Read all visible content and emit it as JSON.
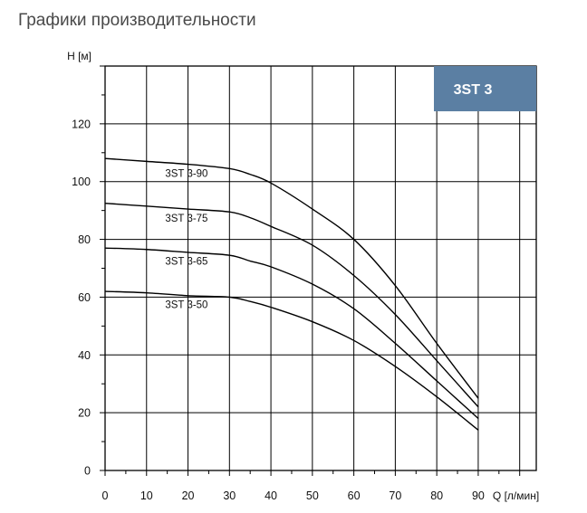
{
  "page_title": "Графики производительности",
  "badge": {
    "text": "3ST 3",
    "color": "#5b7fa3"
  },
  "chart_data": {
    "type": "line",
    "ylabel": "H [м]",
    "xlabel": "Q [л/мин]",
    "xlim": [
      0,
      104
    ],
    "ylim": [
      0,
      140
    ],
    "x_ticks": [
      0,
      10,
      20,
      30,
      40,
      50,
      60,
      70,
      80,
      90
    ],
    "y_ticks": [
      0,
      20,
      40,
      60,
      80,
      100,
      120
    ],
    "grid": true,
    "series": [
      {
        "name": "3ST 3-90",
        "x": [
          0,
          10,
          20,
          30,
          35,
          40,
          50,
          60,
          70,
          80,
          90
        ],
        "y": [
          108,
          107,
          106,
          104.5,
          102.5,
          99.5,
          90.5,
          80,
          64,
          44,
          25
        ]
      },
      {
        "name": "3ST 3-75",
        "x": [
          0,
          10,
          20,
          30,
          35,
          40,
          50,
          60,
          70,
          80,
          90
        ],
        "y": [
          92.5,
          91.5,
          90.5,
          89.5,
          87.5,
          84.5,
          78,
          67.5,
          54,
          38,
          22
        ]
      },
      {
        "name": "3ST 3-65",
        "x": [
          0,
          10,
          20,
          30,
          35,
          40,
          50,
          60,
          70,
          80,
          90
        ],
        "y": [
          77,
          76.5,
          75.5,
          74.5,
          72.5,
          70.5,
          64.5,
          56,
          44,
          31,
          18
        ]
      },
      {
        "name": "3ST 3-50",
        "x": [
          0,
          10,
          20,
          30,
          35,
          40,
          50,
          60,
          70,
          80,
          90
        ],
        "y": [
          62,
          61.5,
          60.5,
          60,
          58.5,
          56.5,
          51.5,
          45,
          36,
          25.5,
          14
        ]
      }
    ]
  }
}
